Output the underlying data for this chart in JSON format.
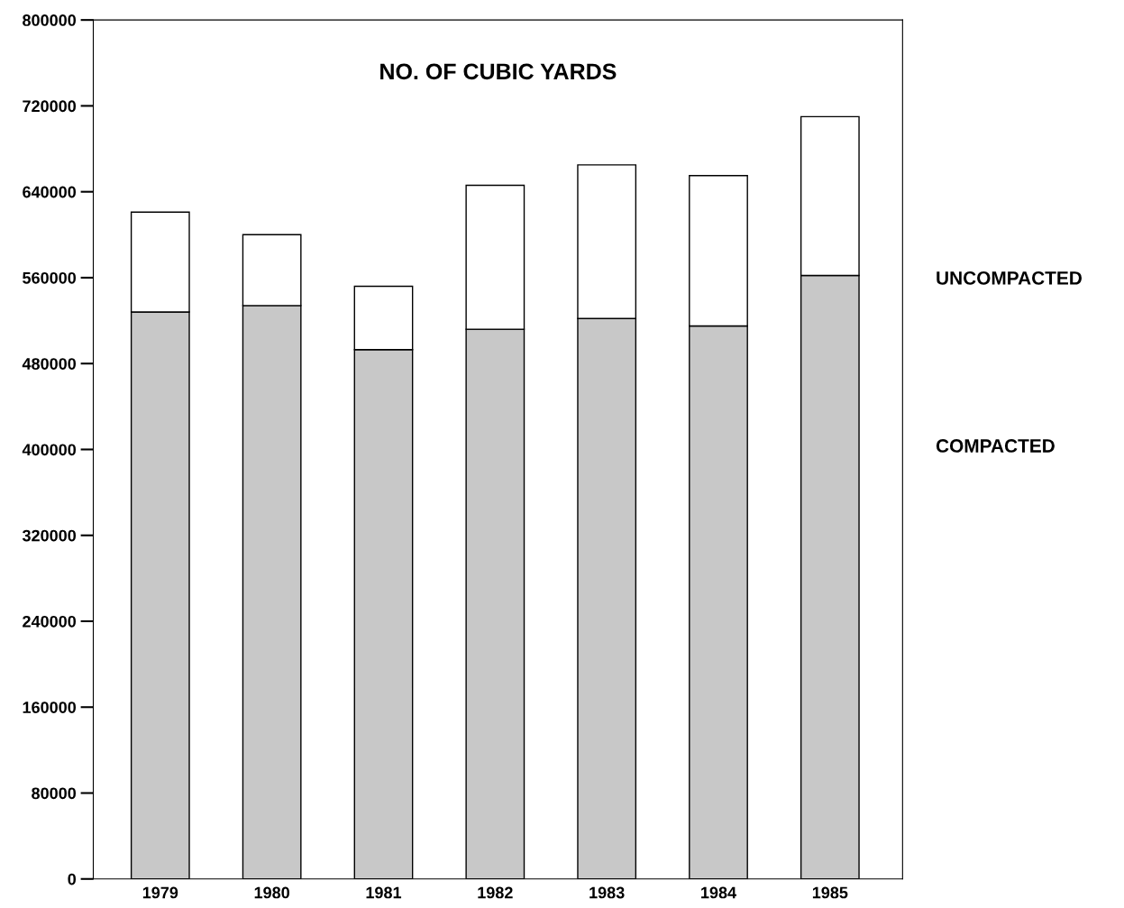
{
  "chart_data": {
    "type": "bar",
    "title": "NO. OF CUBIC YARDS",
    "stacked": true,
    "categories": [
      "1979",
      "1980",
      "1981",
      "1982",
      "1983",
      "1984",
      "1985"
    ],
    "series": [
      {
        "name": "COMPACTED",
        "color": "#c8c8c8",
        "values": [
          528000,
          534000,
          493000,
          512000,
          522000,
          515000,
          562000
        ]
      },
      {
        "name": "UNCOMPACTED",
        "color": "#ffffff",
        "values": [
          93000,
          66000,
          59000,
          134000,
          143000,
          140000,
          148000
        ]
      }
    ],
    "ylim": [
      0,
      800000
    ],
    "yticks": [
      0,
      80000,
      160000,
      240000,
      320000,
      400000,
      480000,
      560000,
      640000,
      720000,
      800000
    ],
    "grid": false,
    "legend": "right"
  }
}
